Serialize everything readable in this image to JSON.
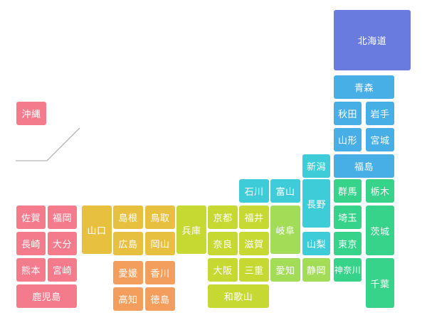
{
  "prefectures": [
    {
      "id": "hokkaido",
      "label": "北海道",
      "color": "#6a7be0"
    },
    {
      "id": "aomori",
      "label": "青森",
      "color": "#48aee6"
    },
    {
      "id": "akita",
      "label": "秋田",
      "color": "#48aee6"
    },
    {
      "id": "iwate",
      "label": "岩手",
      "color": "#48aee6"
    },
    {
      "id": "yamagata",
      "label": "山形",
      "color": "#48aee6"
    },
    {
      "id": "miyagi",
      "label": "宮城",
      "color": "#48aee6"
    },
    {
      "id": "niigata",
      "label": "新潟",
      "color": "#3ecdd8"
    },
    {
      "id": "fukushima",
      "label": "福島",
      "color": "#48aee6"
    },
    {
      "id": "ishikawa",
      "label": "石川",
      "color": "#3ecdd8"
    },
    {
      "id": "toyama",
      "label": "富山",
      "color": "#3ecdd8"
    },
    {
      "id": "nagano",
      "label": "長野",
      "color": "#3ecdd8"
    },
    {
      "id": "gunma",
      "label": "群馬",
      "color": "#38d38a"
    },
    {
      "id": "tochigi",
      "label": "栃木",
      "color": "#38d38a"
    },
    {
      "id": "saitama",
      "label": "埼玉",
      "color": "#38d38a"
    },
    {
      "id": "ibaraki",
      "label": "茨城",
      "color": "#38d38a"
    },
    {
      "id": "tokyo",
      "label": "東京",
      "color": "#38d38a"
    },
    {
      "id": "yamanashi",
      "label": "山梨",
      "color": "#3ecdd8"
    },
    {
      "id": "kanagawa",
      "label": "神奈川",
      "color": "#38d38a"
    },
    {
      "id": "chiba",
      "label": "千葉",
      "color": "#38d38a"
    },
    {
      "id": "fukui",
      "label": "福井",
      "color": "#c6d832"
    },
    {
      "id": "gifu",
      "label": "岐阜",
      "color": "#a3dc56"
    },
    {
      "id": "aichi",
      "label": "愛知",
      "color": "#a3dc56"
    },
    {
      "id": "shizuoka",
      "label": "静岡",
      "color": "#a3dc56"
    },
    {
      "id": "kyoto",
      "label": "京都",
      "color": "#c6d832"
    },
    {
      "id": "shiga",
      "label": "滋賀",
      "color": "#c6d832"
    },
    {
      "id": "nara",
      "label": "奈良",
      "color": "#c6d832"
    },
    {
      "id": "osaka",
      "label": "大阪",
      "color": "#c6d832"
    },
    {
      "id": "mie",
      "label": "三重",
      "color": "#c6d832"
    },
    {
      "id": "wakayama",
      "label": "和歌山",
      "color": "#c6d832"
    },
    {
      "id": "hyogo",
      "label": "兵庫",
      "color": "#c6d832"
    },
    {
      "id": "tottori",
      "label": "鳥取",
      "color": "#e8c040"
    },
    {
      "id": "shimane",
      "label": "島根",
      "color": "#e8c040"
    },
    {
      "id": "okayama",
      "label": "岡山",
      "color": "#e8c040"
    },
    {
      "id": "hiroshima",
      "label": "広島",
      "color": "#e8c040"
    },
    {
      "id": "yamaguchi",
      "label": "山口",
      "color": "#e8c040"
    },
    {
      "id": "ehime",
      "label": "愛媛",
      "color": "#f39e5c"
    },
    {
      "id": "kagawa",
      "label": "香川",
      "color": "#f39e5c"
    },
    {
      "id": "kochi",
      "label": "高知",
      "color": "#f39e5c"
    },
    {
      "id": "tokushima",
      "label": "徳島",
      "color": "#f39e5c"
    },
    {
      "id": "fukuoka",
      "label": "福岡",
      "color": "#f47b8c"
    },
    {
      "id": "saga",
      "label": "佐賀",
      "color": "#f47b8c"
    },
    {
      "id": "nagasaki",
      "label": "長崎",
      "color": "#f47b8c"
    },
    {
      "id": "oita",
      "label": "大分",
      "color": "#f47b8c"
    },
    {
      "id": "kumamoto",
      "label": "熊本",
      "color": "#f47b8c"
    },
    {
      "id": "miyazaki",
      "label": "宮崎",
      "color": "#f47b8c"
    },
    {
      "id": "kagoshima",
      "label": "鹿児島",
      "color": "#f47b8c"
    },
    {
      "id": "okinawa",
      "label": "沖縄",
      "color": "#f47b8c"
    }
  ]
}
